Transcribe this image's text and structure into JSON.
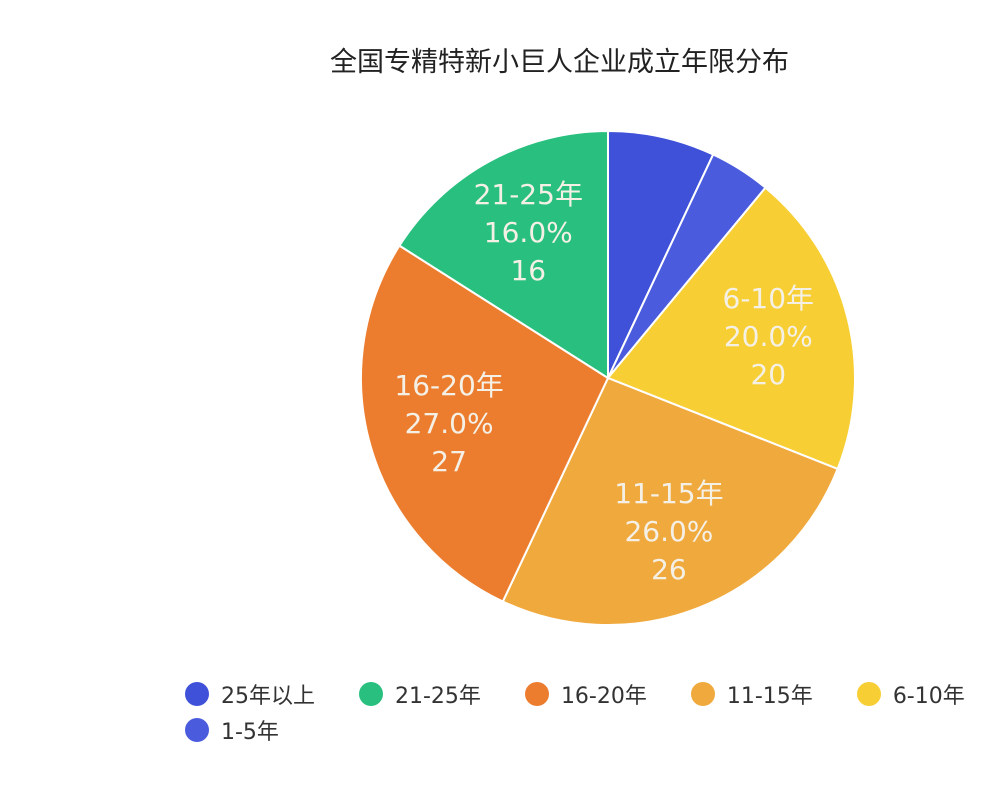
{
  "chart_data": {
    "type": "pie",
    "title": "全国专精特新小巨人企业成立年限分布",
    "total": 100,
    "slices": [
      {
        "name": "25年以上",
        "value": 7,
        "percent": "7.0%",
        "color": "#3F51D9",
        "label_shown": false
      },
      {
        "name": "1-5年",
        "value": 4,
        "percent": "4.0%",
        "color": "#4A5CDD",
        "label_shown": false
      },
      {
        "name": "6-10年",
        "value": 20,
        "percent": "20.0%",
        "color": "#F7CF35",
        "label_shown": true
      },
      {
        "name": "11-15年",
        "value": 26,
        "percent": "26.0%",
        "color": "#F0A93C",
        "label_shown": true
      },
      {
        "name": "16-20年",
        "value": 27,
        "percent": "27.0%",
        "color": "#EC7D2F",
        "label_shown": true
      },
      {
        "name": "21-25年",
        "value": 16,
        "percent": "16.0%",
        "color": "#29C07F",
        "label_shown": true
      }
    ],
    "legend": {
      "placement": "bottom",
      "items": [
        "25年以上",
        "21-25年",
        "16-20年",
        "11-15年",
        "6-10年",
        "1-5年"
      ]
    }
  }
}
